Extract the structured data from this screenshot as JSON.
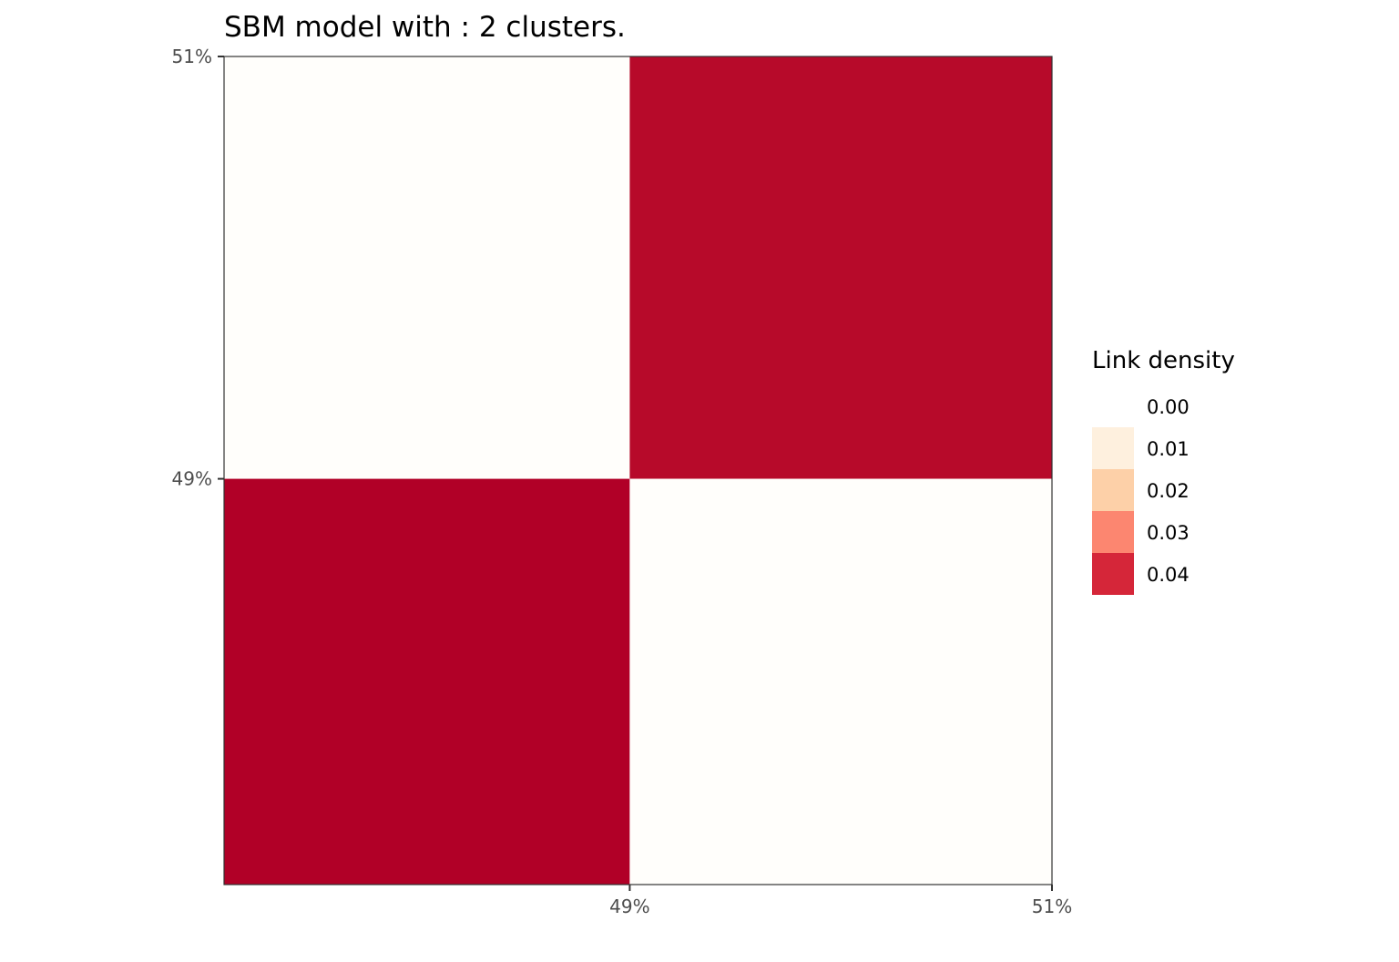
{
  "chart_data": {
    "type": "heatmap",
    "title": "SBM model with : 2 clusters.",
    "x_ticks": [
      "49%",
      "51%"
    ],
    "y_ticks": [
      "49%",
      "51%"
    ],
    "cluster_proportions": [
      0.49,
      0.51
    ],
    "cells": [
      {
        "row": "51%",
        "col": "49%",
        "value": 0.0,
        "color": "#fffefb"
      },
      {
        "row": "51%",
        "col": "51%",
        "value": 0.043,
        "color": "#b70a2a"
      },
      {
        "row": "49%",
        "col": "49%",
        "value": 0.045,
        "color": "#b10027"
      },
      {
        "row": "49%",
        "col": "51%",
        "value": 0.0,
        "color": "#fffefb"
      }
    ],
    "legend": {
      "title": "Link density",
      "entries": [
        {
          "label": "0.00",
          "color": "#ffffff"
        },
        {
          "label": "0.01",
          "color": "#fef0de"
        },
        {
          "label": "0.02",
          "color": "#fdd0a8"
        },
        {
          "label": "0.03",
          "color": "#fc8670"
        },
        {
          "label": "0.04",
          "color": "#d52639"
        }
      ],
      "placement": "right"
    },
    "grid": false
  }
}
